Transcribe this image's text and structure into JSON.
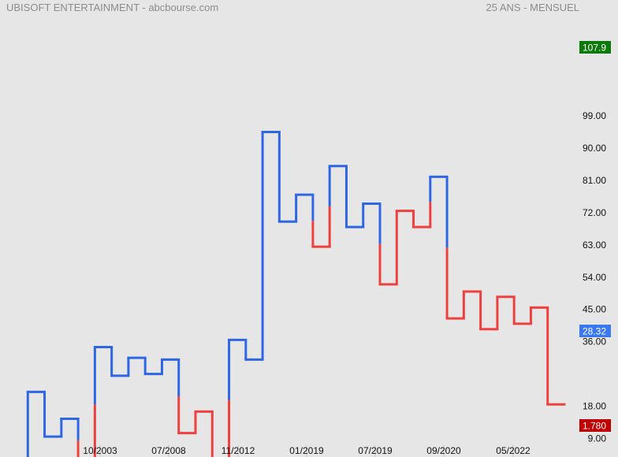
{
  "header": {
    "left_title": "UBISOFT ENTERTAINMENT - abcbourse.com",
    "right_title": "25 ANS - MENSUEL"
  },
  "chart_data": {
    "type": "line",
    "style": "kagi-step",
    "colors": {
      "up": "#2f66e6",
      "down": "#ef4040",
      "background": "#e6e6e6"
    },
    "ylim": [
      1.78,
      107.9
    ],
    "y_ticks": [
      "99.00",
      "90.00",
      "81.00",
      "72.00",
      "63.00",
      "54.00",
      "45.00",
      "36.00",
      "18.00",
      "9.00"
    ],
    "x_ticks": [
      "10/2003",
      "07/2008",
      "11/2012",
      "01/2019",
      "07/2019",
      "09/2020",
      "05/2022"
    ],
    "levels": [
      3.5,
      22.0,
      9.5,
      14.5,
      2.5,
      34.5,
      26.5,
      31.5,
      27.0,
      31.0,
      10.5,
      16.5,
      3.0,
      36.5,
      31.0,
      94.5,
      69.5,
      77.0,
      62.5,
      85.0,
      68.0,
      74.5,
      52.0,
      72.5,
      68.0,
      82.0,
      42.5,
      50.0,
      39.5,
      48.5,
      41.0,
      45.5,
      18.5
    ],
    "segment_colors": [
      "up",
      "up",
      "up",
      "up,down",
      "down,up",
      "up",
      "up",
      "up",
      "up",
      "up,down",
      "down",
      "down",
      "down,up",
      "up",
      "up",
      "up",
      "up",
      "up,down",
      "down,up",
      "up",
      "up",
      "up,down",
      "down",
      "down",
      "down,up",
      "up,down",
      "down",
      "down",
      "down",
      "down",
      "down",
      "down"
    ],
    "badges": {
      "high": {
        "value": "107.9",
        "color": "#0b7a0b"
      },
      "last": {
        "value": "28.32",
        "color": "#3a78f2"
      },
      "low": {
        "value": "1.780",
        "color": "#c00000"
      }
    }
  }
}
